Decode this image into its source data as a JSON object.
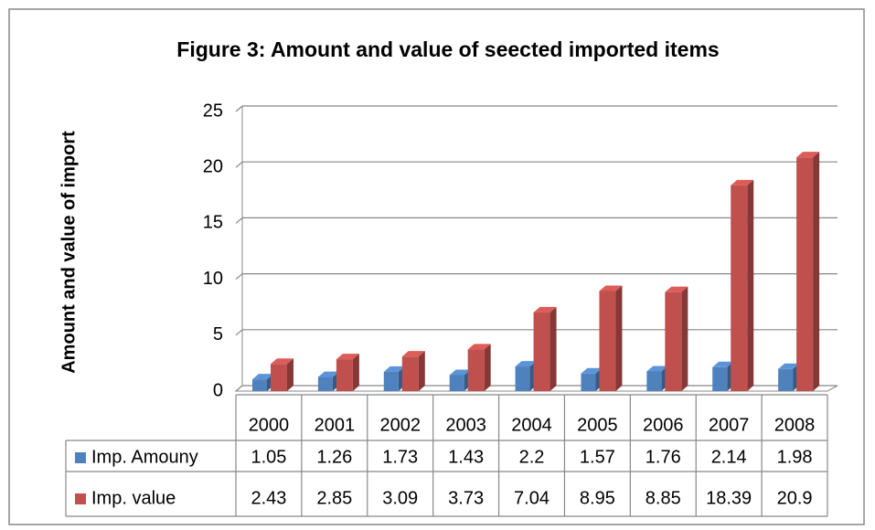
{
  "chart_data": {
    "type": "bar3d",
    "title": "Figure  3: Amount and value of seected imported items",
    "y_label": "Amount and value of import",
    "categories": [
      "2000",
      "2001",
      "2002",
      "2003",
      "2004",
      "2005",
      "2006",
      "2007",
      "2008"
    ],
    "series": [
      {
        "name": "Imp. Amouny",
        "color": "#4f81bd",
        "values": [
          1.05,
          1.26,
          1.73,
          1.43,
          2.2,
          1.57,
          1.76,
          2.14,
          1.98
        ]
      },
      {
        "name": "Imp. value",
        "color": "#c0504d",
        "values": [
          2.43,
          2.85,
          3.09,
          3.73,
          7.04,
          8.95,
          8.85,
          18.39,
          20.9
        ]
      }
    ],
    "ylim": [
      0,
      25
    ],
    "yticks": [
      0,
      5,
      10,
      15,
      20,
      25
    ],
    "grid": true,
    "data_table": true
  }
}
